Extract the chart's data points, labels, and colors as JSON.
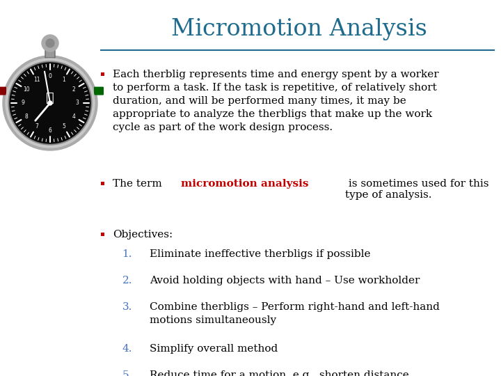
{
  "title": "Micromotion Analysis",
  "title_color": "#1F6B8E",
  "title_fontsize": 24,
  "bg_color": "#FFFFFF",
  "line_color": "#1F6B8E",
  "bullet_color": "#C00000",
  "number_color": "#4472C4",
  "text_color": "#000000",
  "bullet1": "Each therblig represents time and energy spent by a worker\nto perform a task. If the task is repetitive, of relatively short\nduration, and will be performed many times, it may be\nappropriate to analyze the therbligs that make up the work\ncycle as part of the work design process.",
  "bullet2_prefix": "The term ",
  "bullet2_highlight": "micromotion analysis",
  "bullet2_highlight_color": "#C00000",
  "bullet2_suffix": " is sometimes used for this\ntype of analysis.",
  "bullet3_label": "Objectives:",
  "items": [
    "Eliminate ineffective therbligs if possible",
    "Avoid holding objects with hand – Use workholder",
    "Combine therbligs – Perform right-hand and left-hand\nmotions simultaneously",
    "Simplify overall method",
    "Reduce time for a motion, e.g., shorten distance"
  ],
  "font_family": "DejaVu Serif",
  "body_fontsize": 11.0
}
